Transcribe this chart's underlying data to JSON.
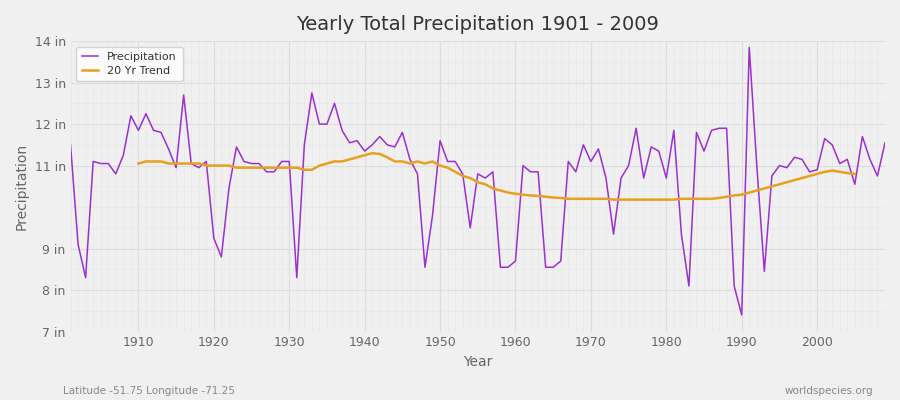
{
  "title": "Yearly Total Precipitation 1901 - 2009",
  "xlabel": "Year",
  "ylabel": "Precipitation",
  "footer_left": "Latitude -51.75 Longitude -71.25",
  "footer_right": "worldspecies.org",
  "years": [
    1901,
    1902,
    1903,
    1904,
    1905,
    1906,
    1907,
    1908,
    1909,
    1910,
    1911,
    1912,
    1913,
    1914,
    1915,
    1916,
    1917,
    1918,
    1919,
    1920,
    1921,
    1922,
    1923,
    1924,
    1925,
    1926,
    1927,
    1928,
    1929,
    1930,
    1931,
    1932,
    1933,
    1934,
    1935,
    1936,
    1937,
    1938,
    1939,
    1940,
    1941,
    1942,
    1943,
    1944,
    1945,
    1946,
    1947,
    1948,
    1949,
    1950,
    1951,
    1952,
    1953,
    1954,
    1955,
    1956,
    1957,
    1958,
    1959,
    1960,
    1961,
    1962,
    1963,
    1964,
    1965,
    1966,
    1967,
    1968,
    1969,
    1970,
    1971,
    1972,
    1973,
    1974,
    1975,
    1976,
    1977,
    1978,
    1979,
    1980,
    1981,
    1982,
    1983,
    1984,
    1985,
    1986,
    1987,
    1988,
    1989,
    1990,
    1991,
    1992,
    1993,
    1994,
    1995,
    1996,
    1997,
    1998,
    1999,
    2000,
    2001,
    2002,
    2003,
    2004,
    2005,
    2006,
    2007,
    2008,
    2009
  ],
  "precip_in": [
    11.5,
    9.1,
    8.3,
    11.1,
    11.05,
    11.05,
    10.8,
    11.25,
    12.2,
    11.85,
    12.25,
    11.85,
    11.8,
    11.4,
    10.95,
    12.7,
    11.05,
    10.95,
    11.1,
    9.25,
    8.8,
    10.45,
    11.45,
    11.1,
    11.05,
    11.05,
    10.85,
    10.85,
    11.1,
    11.1,
    8.3,
    11.5,
    12.75,
    12.0,
    12.0,
    12.5,
    11.85,
    11.55,
    11.6,
    11.35,
    11.5,
    11.7,
    11.5,
    11.45,
    11.8,
    11.15,
    10.8,
    8.55,
    9.8,
    11.6,
    11.1,
    11.1,
    10.8,
    9.5,
    10.8,
    10.7,
    10.85,
    8.55,
    8.55,
    8.7,
    11.0,
    10.85,
    10.85,
    8.55,
    8.55,
    8.7,
    11.1,
    10.85,
    11.5,
    11.1,
    11.4,
    10.7,
    9.35,
    10.7,
    11.0,
    11.9,
    10.7,
    11.45,
    11.35,
    10.7,
    11.85,
    9.35,
    8.1,
    11.8,
    11.35,
    11.85,
    11.9,
    11.9,
    8.1,
    7.4,
    13.85,
    11.0,
    8.45,
    10.75,
    11.0,
    10.95,
    11.2,
    11.15,
    10.85,
    10.9,
    11.65,
    11.5,
    11.05,
    11.15,
    10.55,
    11.7,
    11.15,
    10.75,
    11.55
  ],
  "trend_years": [
    1910,
    1911,
    1912,
    1913,
    1914,
    1915,
    1916,
    1917,
    1918,
    1919,
    1920,
    1921,
    1922,
    1923,
    1924,
    1925,
    1926,
    1927,
    1928,
    1929,
    1930,
    1931,
    1932,
    1933,
    1934,
    1935,
    1936,
    1937,
    1938,
    1939,
    1940,
    1941,
    1942,
    1943,
    1944,
    1945,
    1946,
    1947,
    1948,
    1949,
    1950,
    1951,
    1952,
    1953,
    1954,
    1955,
    1956,
    1957,
    1958,
    1959,
    1960,
    1961,
    1962,
    1963,
    1964,
    1965,
    1966,
    1967,
    1968,
    1969,
    1970,
    1971,
    1972,
    1973,
    1974,
    1975,
    1976,
    1977,
    1978,
    1979,
    1980,
    1981,
    1982,
    1983,
    1984,
    1985,
    1986,
    1987,
    1988,
    1989,
    1990,
    1991,
    1992,
    1993,
    1994,
    1995,
    1996,
    1997,
    1998,
    1999,
    2000,
    2001,
    2002,
    2003,
    2004,
    2005
  ],
  "trend_vals": [
    11.05,
    11.1,
    11.1,
    11.1,
    11.05,
    11.05,
    11.05,
    11.05,
    11.05,
    11.0,
    11.0,
    11.0,
    11.0,
    10.95,
    10.95,
    10.95,
    10.95,
    10.95,
    10.95,
    10.95,
    10.95,
    10.95,
    10.9,
    10.9,
    11.0,
    11.05,
    11.1,
    11.1,
    11.15,
    11.2,
    11.25,
    11.3,
    11.28,
    11.2,
    11.1,
    11.1,
    11.05,
    11.1,
    11.05,
    11.1,
    11.0,
    10.95,
    10.85,
    10.75,
    10.7,
    10.6,
    10.55,
    10.45,
    10.4,
    10.35,
    10.32,
    10.3,
    10.28,
    10.27,
    10.25,
    10.23,
    10.22,
    10.2,
    10.2,
    10.2,
    10.2,
    10.2,
    10.2,
    10.18,
    10.18,
    10.18,
    10.18,
    10.18,
    10.18,
    10.18,
    10.18,
    10.18,
    10.2,
    10.2,
    10.2,
    10.2,
    10.2,
    10.22,
    10.25,
    10.28,
    10.3,
    10.35,
    10.4,
    10.45,
    10.5,
    10.55,
    10.6,
    10.65,
    10.7,
    10.75,
    10.8,
    10.85,
    10.88,
    10.85,
    10.82,
    10.8
  ],
  "precip_color": "#9b30d0",
  "trend_color": "#e8a020",
  "bg_color": "#f0f0f0",
  "plot_bg_color": "#f0f0f0",
  "ylim_min": 7.0,
  "ylim_max": 14.0,
  "yticks": [
    7,
    8,
    9,
    11,
    12,
    13,
    14
  ],
  "ytick_labels": [
    "7 in",
    "8 in",
    "9 in",
    "11 in",
    "12 in",
    "13 in",
    "14 in"
  ],
  "xlim_min": 1901,
  "xlim_max": 2009,
  "xticks": [
    1910,
    1920,
    1930,
    1940,
    1950,
    1960,
    1970,
    1980,
    1990,
    2000
  ],
  "grid_major_color": "#dddddd",
  "grid_minor_color": "#e8e8e8",
  "footer_color": "#888888",
  "title_fontsize": 14,
  "axis_label_fontsize": 10,
  "tick_fontsize": 9
}
